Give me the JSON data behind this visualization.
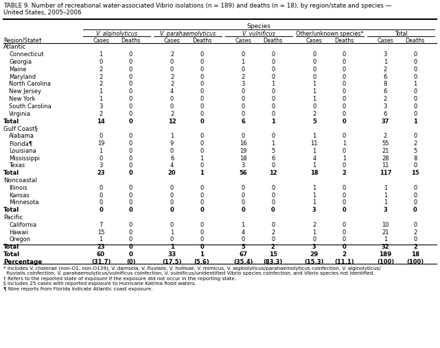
{
  "title_line1": "TABLE 9. Number of recreational water-associated Vibrio isolations (n = 189) and deaths (n = 18), by region/state and species —",
  "title_line2": "United States, 2005–2006",
  "col_groups": [
    "V. alginolyticus",
    "V. parahaemolyticus",
    "V. vulnificus",
    "Other/unknown species*",
    "Total"
  ],
  "col_group_italic": [
    true,
    true,
    true,
    false,
    false
  ],
  "col_headers": [
    "Cases",
    "Deaths",
    "Cases",
    "Deaths",
    "Cases",
    "Deaths",
    "Cases",
    "Deaths",
    "Cases",
    "Deaths"
  ],
  "row_header": "Region/State†",
  "regions": [
    {
      "name": "Atlantic",
      "rows": [
        {
          "label": "Connecticut",
          "data": [
            1,
            0,
            2,
            0,
            0,
            0,
            0,
            0,
            3,
            0
          ],
          "is_total": false
        },
        {
          "label": "Georgia",
          "data": [
            0,
            0,
            0,
            0,
            1,
            0,
            0,
            0,
            1,
            0
          ],
          "is_total": false
        },
        {
          "label": "Maine",
          "data": [
            2,
            0,
            0,
            0,
            0,
            0,
            0,
            0,
            2,
            0
          ],
          "is_total": false
        },
        {
          "label": "Maryland",
          "data": [
            2,
            0,
            2,
            0,
            2,
            0,
            0,
            0,
            6,
            0
          ],
          "is_total": false
        },
        {
          "label": "North Carolina",
          "data": [
            2,
            0,
            2,
            0,
            3,
            1,
            1,
            0,
            8,
            1
          ],
          "is_total": false
        },
        {
          "label": "New Jersey",
          "data": [
            1,
            0,
            4,
            0,
            0,
            0,
            1,
            0,
            6,
            0
          ],
          "is_total": false
        },
        {
          "label": "New York",
          "data": [
            1,
            0,
            0,
            0,
            0,
            0,
            1,
            0,
            2,
            0
          ],
          "is_total": false
        },
        {
          "label": "South Carolina",
          "data": [
            3,
            0,
            0,
            0,
            0,
            0,
            0,
            0,
            3,
            0
          ],
          "is_total": false
        },
        {
          "label": "Virginia",
          "data": [
            2,
            0,
            2,
            0,
            0,
            0,
            2,
            0,
            6,
            0
          ],
          "is_total": false
        },
        {
          "label": "Total",
          "data": [
            14,
            0,
            12,
            0,
            6,
            1,
            5,
            0,
            37,
            1
          ],
          "is_total": true
        }
      ]
    },
    {
      "name": "Gulf Coast§",
      "rows": [
        {
          "label": "Alabama",
          "data": [
            0,
            0,
            1,
            0,
            0,
            0,
            1,
            0,
            2,
            0
          ],
          "is_total": false
        },
        {
          "label": "Florida¶",
          "data": [
            19,
            0,
            9,
            0,
            16,
            1,
            11,
            1,
            55,
            2
          ],
          "is_total": false
        },
        {
          "label": "Louisiana",
          "data": [
            1,
            0,
            0,
            0,
            19,
            5,
            1,
            0,
            21,
            5
          ],
          "is_total": false
        },
        {
          "label": "Mississippi",
          "data": [
            0,
            0,
            6,
            1,
            18,
            6,
            4,
            1,
            28,
            8
          ],
          "is_total": false
        },
        {
          "label": "Texas",
          "data": [
            3,
            0,
            4,
            0,
            3,
            0,
            1,
            0,
            11,
            0
          ],
          "is_total": false
        },
        {
          "label": "Total",
          "data": [
            23,
            0,
            20,
            1,
            56,
            12,
            18,
            2,
            117,
            15
          ],
          "is_total": true
        }
      ]
    },
    {
      "name": "Noncoastal",
      "rows": [
        {
          "label": "Illinois",
          "data": [
            0,
            0,
            0,
            0,
            0,
            0,
            1,
            0,
            1,
            0
          ],
          "is_total": false
        },
        {
          "label": "Kansas",
          "data": [
            0,
            0,
            0,
            0,
            0,
            0,
            1,
            0,
            1,
            0
          ],
          "is_total": false
        },
        {
          "label": "Minnesota",
          "data": [
            0,
            0,
            0,
            0,
            0,
            0,
            1,
            0,
            1,
            0
          ],
          "is_total": false
        },
        {
          "label": "Total",
          "data": [
            0,
            0,
            0,
            0,
            0,
            0,
            3,
            0,
            3,
            0
          ],
          "is_total": true
        }
      ]
    },
    {
      "name": "Pacific",
      "rows": [
        {
          "label": "California",
          "data": [
            7,
            0,
            0,
            0,
            1,
            0,
            2,
            0,
            10,
            0
          ],
          "is_total": false
        },
        {
          "label": "Hawaii",
          "data": [
            15,
            0,
            1,
            0,
            4,
            2,
            1,
            0,
            21,
            2
          ],
          "is_total": false
        },
        {
          "label": "Oregon",
          "data": [
            1,
            0,
            0,
            0,
            0,
            0,
            0,
            0,
            1,
            0
          ],
          "is_total": false
        },
        {
          "label": "Total",
          "data": [
            23,
            0,
            1,
            0,
            5,
            2,
            3,
            0,
            32,
            2
          ],
          "is_total": true
        }
      ]
    }
  ],
  "grand_total": {
    "label": "Total",
    "data": [
      60,
      0,
      33,
      1,
      67,
      15,
      29,
      2,
      189,
      18
    ]
  },
  "percentage": {
    "label": "Percentage",
    "data": [
      "(31.7)",
      "(0)",
      "(17.5)",
      "(5.6)",
      "(35.4)",
      "(83.3)",
      "(15.3)",
      "(11.1)",
      "(100)",
      "(100)"
    ]
  },
  "footnote1": "* Includes V. cholerae (non-O1, non-O139), V. damsela, V. fluvialis, V. hollisae, V. mimicus, V. alginolyticus/parahaemolyticus coinfection, V. alginolyticus/",
  "footnote2": "  fluvialis coinfection, V. parahaemolyticus/vulnificus coinfection, V. vulnificus/unidentified Vibrio species coinfection, and Vibrio species not identified.",
  "footnote3": "† Refers to the reported state of exposure if the exposure did not occur in the reporting state.",
  "footnote4": "§ Includes 25 cases with reported exposure to Hurricane Katrina flood waters.",
  "footnote5": "¶ Nine reports from Florida indicate Atlantic coast exposure.",
  "bg_color": "#FFFFFF"
}
